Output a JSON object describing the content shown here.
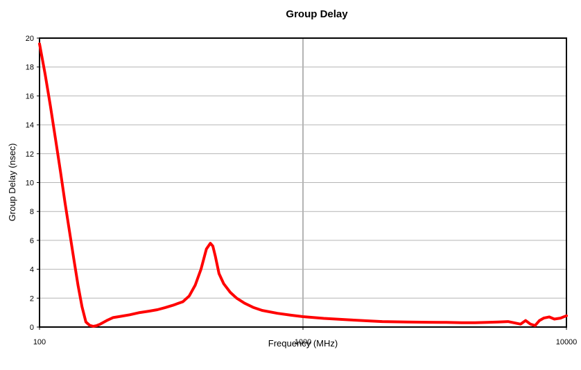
{
  "chart_data": {
    "type": "line",
    "title": "Group Delay",
    "xlabel": "Frequency (MHz)",
    "ylabel": "Group Delay (nsec)",
    "x_scale": "log",
    "xlim": [
      100,
      10000
    ],
    "ylim": [
      0,
      20
    ],
    "x_ticks": [
      "100",
      "1000",
      "10000"
    ],
    "y_ticks": [
      "0",
      "2",
      "4",
      "6",
      "8",
      "10",
      "12",
      "14",
      "16",
      "18",
      "20"
    ],
    "horizontal_grid": true,
    "vertical_grid": true,
    "line_color": "#ff0000",
    "series": [
      {
        "x": [
          100,
          105,
          110,
          115,
          120,
          125,
          130,
          135,
          140,
          145,
          150,
          155,
          160,
          165,
          170,
          180,
          190,
          200,
          220,
          240,
          260,
          280,
          300,
          320,
          350,
          370,
          390,
          410,
          430,
          445,
          455,
          465,
          480,
          500,
          530,
          560,
          600,
          650,
          700,
          800,
          900,
          1000,
          1200,
          1500,
          1800,
          2000,
          2500,
          3000,
          3500,
          4000,
          4500,
          5000,
          5500,
          6000,
          6300,
          6700,
          7000,
          7300,
          7600,
          7900,
          8200,
          8600,
          9000,
          9500,
          10000
        ],
        "y": [
          19.6,
          17.5,
          15.3,
          13.0,
          10.8,
          8.6,
          6.6,
          4.7,
          2.9,
          1.4,
          0.35,
          0.12,
          0.05,
          0.1,
          0.2,
          0.45,
          0.65,
          0.72,
          0.85,
          1.0,
          1.1,
          1.2,
          1.35,
          1.5,
          1.75,
          2.15,
          2.9,
          4.0,
          5.4,
          5.8,
          5.6,
          4.9,
          3.7,
          3.0,
          2.4,
          2.0,
          1.65,
          1.35,
          1.15,
          0.95,
          0.82,
          0.72,
          0.6,
          0.5,
          0.42,
          0.38,
          0.35,
          0.33,
          0.32,
          0.3,
          0.3,
          0.32,
          0.35,
          0.38,
          0.3,
          0.2,
          0.45,
          0.2,
          0.1,
          0.45,
          0.62,
          0.7,
          0.55,
          0.62,
          0.78
        ]
      }
    ]
  }
}
